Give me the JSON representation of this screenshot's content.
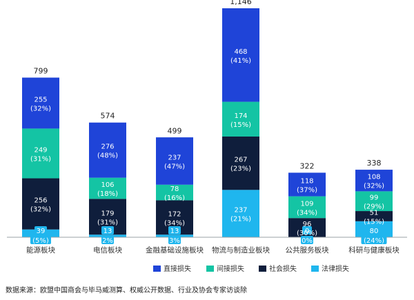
{
  "chart_data": {
    "type": "bar",
    "stacked": true,
    "categories": [
      "能源板块",
      "电信板块",
      "金融基础设施板块",
      "物流与制造业板块",
      "公共服务板块",
      "科研与健康板块"
    ],
    "totals": [
      "799",
      "574",
      "499",
      "1,146",
      "322",
      "338"
    ],
    "total_values": [
      799,
      574,
      499,
      1146,
      322,
      338
    ],
    "series": [
      {
        "name": "法律损失",
        "color": "#1fb6ee",
        "values": [
          39,
          13,
          13,
          237,
          0,
          80
        ],
        "labels": [
          "39",
          "13",
          "13",
          "237",
          "0",
          "80"
        ],
        "pcts": [
          "(5%)",
          "2%",
          "3%",
          "(21%)",
          "0%",
          "(24%)"
        ]
      },
      {
        "name": "社会损失",
        "color": "#0f1e3c",
        "values": [
          256,
          179,
          172,
          267,
          96,
          51
        ],
        "labels": [
          "256",
          "179",
          "172",
          "267",
          "96",
          "51"
        ],
        "pcts": [
          "(32%)",
          "(31%)",
          "(34%)",
          "(23%)",
          "(30%)",
          "(15%)"
        ]
      },
      {
        "name": "间接损失",
        "color": "#14c4a4",
        "values": [
          249,
          106,
          78,
          174,
          109,
          99
        ],
        "labels": [
          "249",
          "106",
          "78",
          "174",
          "109",
          "99"
        ],
        "pcts": [
          "(31%)",
          "(18%)",
          "(16%)",
          "(15%)",
          "(34%)",
          "(29%)"
        ]
      },
      {
        "name": "直接损失",
        "color": "#1f44d8",
        "values": [
          255,
          276,
          237,
          468,
          118,
          108
        ],
        "labels": [
          "255",
          "276",
          "237",
          "468",
          "118",
          "108"
        ],
        "pcts": [
          "(32%)",
          "(48%)",
          "(47%)",
          "(41%)",
          "(37%)",
          "(32%)"
        ]
      }
    ],
    "legend_order": [
      "直接损失",
      "间接损失",
      "社会损失",
      "法律损失"
    ],
    "legend_position": "bottom",
    "ylim": [
      0,
      1146
    ],
    "grid": false
  },
  "source": "数据来源：欧盟中国商会与毕马威测算、权威公开数据、行业及协会专家访谈除"
}
